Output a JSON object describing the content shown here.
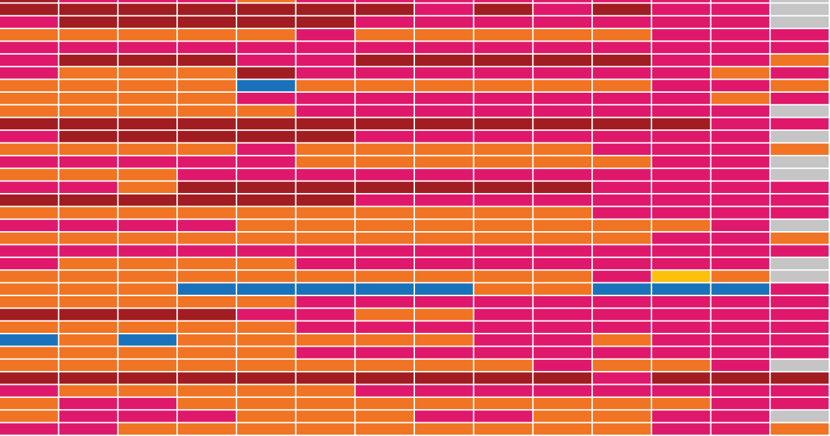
{
  "chart_data": {
    "type": "heatmap",
    "legend": {
      "m": "#e0186c",
      "o": "#f07423",
      "d": "#a11d21",
      "b": "#1a73ba",
      "y": "#fcc00d",
      "g": "#c5c5c5"
    },
    "grid": false,
    "columns": 14,
    "rows": [
      "dmmmommmmmmmmg",
      "dddddddmdmdmmg",
      "mdddddmmmmmmmg",
      "ooooomooooommm",
      "mmmmmmmmmmmmmm",
      "mdddmmdddddmmo",
      "mooodmmmmmmmom",
      "ooooboooooommo",
      "oooommmmmmmmom",
      "ooooommmmmmmmg",
      "ddddddddddddmm",
      "mdddddmmmmmmmg",
      "oooomooooommmo",
      "mmmmmoooooommg",
      "ooommmmmmmmmmg",
      "mmodddddddmmmm",
      "ddddddmmmmmmmm",
      "oooooooooommmm",
      "mmmmoooooooomg",
      "ooooooooooommo",
      "mmmmmmmmmmmmmm",
      "moooommmmmmmmg",
      "oooooooooomyog",
      "ooobbbbboobbbm",
      "ooooommmmmmmmm",
      "ddddmmoommmmmm",
      "ooooommmmmmmmm",
      "bobooooommommm",
      "ooooommmmmmmmm",
      "ooooooooomoomg",
      "ddddddddddmddd",
      "mooooommmmmmmm",
      "ommooooooooomm",
      "ommmooommoommg",
      "mmooooooooommo"
    ]
  }
}
